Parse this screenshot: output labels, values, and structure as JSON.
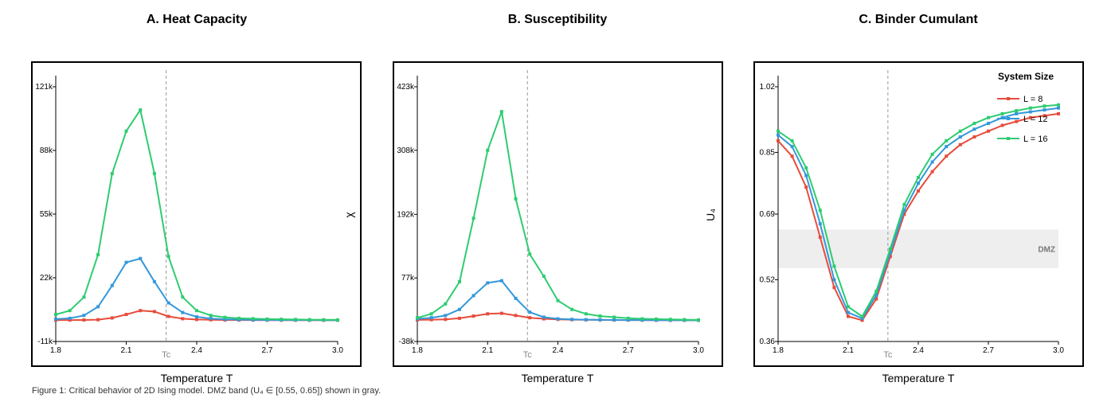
{
  "caption": "Figure 1: Critical behavior of 2D Ising model. DMZ band (U₄ ∈ [0.55, 0.65]) shown in gray.",
  "colors": {
    "L8": "#e74c3c",
    "L12": "#3498db",
    "L16": "#2ecc71",
    "tc_line": "#999999",
    "dmz_band": "#eeeeee"
  },
  "chart_data": [
    {
      "type": "line",
      "title": "A. Heat Capacity",
      "xlabel": "Temperature T",
      "ylabel": "",
      "xlim": [
        1.8,
        3.0
      ],
      "ylim": [
        -11000,
        121000
      ],
      "xticks": [
        1.8,
        2.1,
        2.4,
        2.7,
        3.0
      ],
      "xtick_labels": [
        "1.8",
        "2.1",
        "2.4",
        "2.7",
        "3.0"
      ],
      "yticks": [
        -11000,
        22000,
        55000,
        88000,
        121000
      ],
      "ytick_labels": [
        "-11k",
        "22k",
        "55k",
        "88k",
        "121k"
      ],
      "tc": 2.27,
      "tc_label": "Tc",
      "x": [
        1.8,
        1.86,
        1.92,
        1.98,
        2.04,
        2.1,
        2.16,
        2.22,
        2.28,
        2.34,
        2.4,
        2.46,
        2.52,
        2.58,
        2.64,
        2.7,
        2.76,
        2.82,
        2.88,
        2.94,
        3.0
      ],
      "series": [
        {
          "name": "L = 8",
          "values": [
            100,
            100,
            150,
            300,
            1200,
            3000,
            5000,
            4500,
            2000,
            800,
            400,
            250,
            150,
            100,
            80,
            60,
            50,
            40,
            30,
            25,
            20
          ]
        },
        {
          "name": "L = 12",
          "values": [
            600,
            1000,
            2500,
            7000,
            18000,
            30000,
            32000,
            20000,
            9000,
            4000,
            1800,
            900,
            500,
            300,
            200,
            150,
            120,
            100,
            80,
            60,
            50
          ]
        },
        {
          "name": "L = 16",
          "values": [
            3000,
            5000,
            12000,
            34000,
            76000,
            98000,
            109000,
            76000,
            33000,
            12000,
            5000,
            2500,
            1500,
            1000,
            800,
            600,
            500,
            400,
            300,
            250,
            200
          ]
        }
      ]
    },
    {
      "type": "line",
      "title": "B. Susceptibility",
      "xlabel": "Temperature T",
      "ylabel": "χ",
      "xlim": [
        1.8,
        3.0
      ],
      "ylim": [
        -38000,
        423000
      ],
      "xticks": [
        1.8,
        2.1,
        2.4,
        2.7,
        3.0
      ],
      "xtick_labels": [
        "1.8",
        "2.1",
        "2.4",
        "2.7",
        "3.0"
      ],
      "yticks": [
        -38000,
        77000,
        192000,
        308000,
        423000
      ],
      "ytick_labels": [
        "-38k",
        "77k",
        "192k",
        "308k",
        "423k"
      ],
      "tc": 2.27,
      "tc_label": "Tc",
      "x": [
        1.8,
        1.86,
        1.92,
        1.98,
        2.04,
        2.1,
        2.16,
        2.22,
        2.28,
        2.34,
        2.4,
        2.46,
        2.52,
        2.58,
        2.64,
        2.7,
        2.76,
        2.82,
        2.88,
        2.94,
        3.0
      ],
      "series": [
        {
          "name": "L = 8",
          "values": [
            1000,
            1500,
            2000,
            4000,
            8000,
            12000,
            13000,
            9000,
            5000,
            3000,
            2000,
            1500,
            1200,
            1000,
            800,
            700,
            600,
            500,
            400,
            350,
            300
          ]
        },
        {
          "name": "L = 12",
          "values": [
            3000,
            5000,
            9000,
            20000,
            45000,
            68000,
            72000,
            40000,
            15000,
            6000,
            3000,
            2000,
            1500,
            1200,
            1000,
            800,
            700,
            600,
            500,
            400,
            300
          ]
        },
        {
          "name": "L = 16",
          "values": [
            5000,
            12000,
            30000,
            70000,
            185000,
            308000,
            378000,
            220000,
            120000,
            80000,
            36000,
            20000,
            12000,
            8000,
            6000,
            4000,
            3000,
            2500,
            2000,
            1500,
            1000
          ]
        }
      ]
    },
    {
      "type": "line",
      "title": "C. Binder Cumulant",
      "xlabel": "Temperature T",
      "ylabel": "U₄",
      "xlim": [
        1.8,
        3.0
      ],
      "ylim": [
        0.36,
        1.02
      ],
      "xticks": [
        1.8,
        2.1,
        2.4,
        2.7,
        3.0
      ],
      "xtick_labels": [
        "1.8",
        "2.1",
        "2.4",
        "2.7",
        "3.0"
      ],
      "yticks": [
        0.36,
        0.52,
        0.69,
        0.85,
        1.02
      ],
      "ytick_labels": [
        "0.36",
        "0.52",
        "0.69",
        "0.85",
        "1.02"
      ],
      "tc": 2.27,
      "tc_label": "Tc",
      "dmz": [
        0.55,
        0.65
      ],
      "dmz_label": "DMZ",
      "legend_title": "System Size",
      "legend_position": "top-right",
      "x": [
        1.8,
        1.86,
        1.92,
        1.98,
        2.04,
        2.1,
        2.16,
        2.22,
        2.28,
        2.34,
        2.4,
        2.46,
        2.52,
        2.58,
        2.64,
        2.7,
        2.76,
        2.82,
        2.88,
        2.94,
        3.0
      ],
      "series": [
        {
          "name": "L = 8",
          "values": [
            0.88,
            0.84,
            0.76,
            0.63,
            0.5,
            0.425,
            0.415,
            0.47,
            0.58,
            0.69,
            0.75,
            0.8,
            0.84,
            0.87,
            0.89,
            0.905,
            0.92,
            0.93,
            0.94,
            0.945,
            0.95
          ]
        },
        {
          "name": "L = 12",
          "values": [
            0.895,
            0.865,
            0.79,
            0.665,
            0.52,
            0.435,
            0.42,
            0.48,
            0.59,
            0.7,
            0.77,
            0.825,
            0.865,
            0.89,
            0.91,
            0.925,
            0.94,
            0.95,
            0.955,
            0.96,
            0.965
          ]
        },
        {
          "name": "L = 16",
          "values": [
            0.905,
            0.88,
            0.81,
            0.7,
            0.555,
            0.45,
            0.425,
            0.49,
            0.6,
            0.715,
            0.785,
            0.845,
            0.88,
            0.905,
            0.925,
            0.94,
            0.95,
            0.958,
            0.965,
            0.97,
            0.973
          ]
        }
      ]
    }
  ]
}
